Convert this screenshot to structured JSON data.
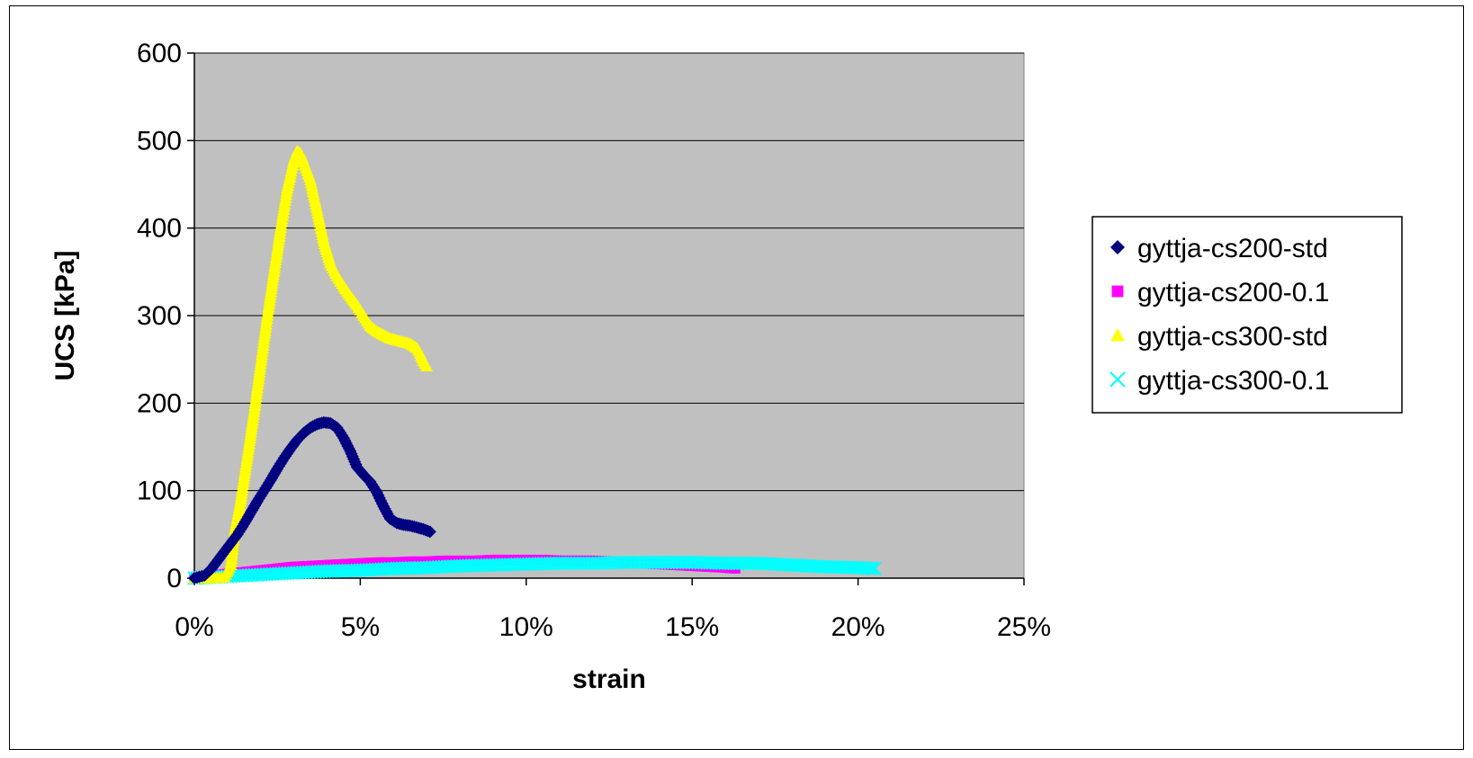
{
  "colors": {
    "plot_bg": "#c0c0c0",
    "gridline": "#000000",
    "axis": "#000000"
  },
  "chart_data": {
    "type": "scatter",
    "title": "",
    "xlabel": "strain",
    "ylabel": "UCS [kPa]",
    "xlim": [
      0,
      0.25
    ],
    "ylim": [
      0,
      600
    ],
    "x_tick_values": [
      0,
      0.05,
      0.1,
      0.15,
      0.2,
      0.25
    ],
    "x_tick_labels": [
      "0%",
      "5%",
      "10%",
      "15%",
      "20%",
      "25%"
    ],
    "y_tick_values": [
      0,
      100,
      200,
      300,
      400,
      500,
      600
    ],
    "y_tick_labels": [
      "0",
      "100",
      "200",
      "300",
      "400",
      "500",
      "600"
    ],
    "grid": "horizontal major gridlines",
    "legend_position": "right",
    "series": [
      {
        "name": "gyttja-cs200-std",
        "marker": "diamond",
        "color": "#000080",
        "points": [
          [
            0,
            0
          ],
          [
            0.003,
            3
          ],
          [
            0.005,
            10
          ],
          [
            0.007,
            20
          ],
          [
            0.009,
            30
          ],
          [
            0.011,
            40
          ],
          [
            0.013,
            50
          ],
          [
            0.015,
            62
          ],
          [
            0.017,
            75
          ],
          [
            0.019,
            88
          ],
          [
            0.021,
            100
          ],
          [
            0.023,
            112
          ],
          [
            0.025,
            125
          ],
          [
            0.027,
            137
          ],
          [
            0.029,
            148
          ],
          [
            0.031,
            158
          ],
          [
            0.033,
            166
          ],
          [
            0.035,
            172
          ],
          [
            0.037,
            176
          ],
          [
            0.039,
            178
          ],
          [
            0.041,
            177
          ],
          [
            0.043,
            172
          ],
          [
            0.045,
            160
          ],
          [
            0.047,
            145
          ],
          [
            0.049,
            127
          ],
          [
            0.051,
            118
          ],
          [
            0.053,
            110
          ],
          [
            0.055,
            98
          ],
          [
            0.057,
            82
          ],
          [
            0.059,
            68
          ],
          [
            0.061,
            63
          ],
          [
            0.063,
            61
          ],
          [
            0.065,
            60
          ],
          [
            0.067,
            58
          ],
          [
            0.069,
            56
          ],
          [
            0.071,
            53
          ]
        ]
      },
      {
        "name": "gyttja-cs200-0.1",
        "marker": "square",
        "color": "#ff00ff",
        "points": [
          [
            0,
            0
          ],
          [
            0.005,
            3
          ],
          [
            0.01,
            5
          ],
          [
            0.015,
            7
          ],
          [
            0.02,
            9
          ],
          [
            0.025,
            11
          ],
          [
            0.03,
            13
          ],
          [
            0.035,
            14
          ],
          [
            0.04,
            15
          ],
          [
            0.045,
            16
          ],
          [
            0.05,
            17
          ],
          [
            0.055,
            18
          ],
          [
            0.06,
            18
          ],
          [
            0.065,
            19
          ],
          [
            0.07,
            19
          ],
          [
            0.075,
            20
          ],
          [
            0.08,
            20
          ],
          [
            0.085,
            20
          ],
          [
            0.09,
            21
          ],
          [
            0.095,
            21
          ],
          [
            0.1,
            21
          ],
          [
            0.105,
            21
          ],
          [
            0.11,
            20
          ],
          [
            0.115,
            20
          ],
          [
            0.12,
            20
          ],
          [
            0.125,
            19
          ],
          [
            0.13,
            18
          ],
          [
            0.135,
            17
          ],
          [
            0.14,
            16
          ],
          [
            0.145,
            15
          ],
          [
            0.15,
            14
          ],
          [
            0.155,
            13
          ],
          [
            0.16,
            12
          ],
          [
            0.163,
            11
          ]
        ]
      },
      {
        "name": "gyttja-cs300-std",
        "marker": "triangle",
        "color": "#ffff00",
        "points": [
          [
            0,
            0
          ],
          [
            0.003,
            0
          ],
          [
            0.006,
            0
          ],
          [
            0.009,
            1
          ],
          [
            0.011,
            15
          ],
          [
            0.012,
            50
          ],
          [
            0.014,
            90
          ],
          [
            0.016,
            140
          ],
          [
            0.018,
            190
          ],
          [
            0.02,
            245
          ],
          [
            0.022,
            300
          ],
          [
            0.024,
            350
          ],
          [
            0.026,
            400
          ],
          [
            0.028,
            445
          ],
          [
            0.03,
            478
          ],
          [
            0.031,
            488
          ],
          [
            0.032,
            485
          ],
          [
            0.033,
            475
          ],
          [
            0.035,
            455
          ],
          [
            0.037,
            420
          ],
          [
            0.039,
            385
          ],
          [
            0.041,
            360
          ],
          [
            0.043,
            345
          ],
          [
            0.045,
            333
          ],
          [
            0.047,
            322
          ],
          [
            0.049,
            312
          ],
          [
            0.051,
            300
          ],
          [
            0.053,
            288
          ],
          [
            0.055,
            282
          ],
          [
            0.057,
            278
          ],
          [
            0.059,
            274
          ],
          [
            0.061,
            272
          ],
          [
            0.063,
            270
          ],
          [
            0.065,
            268
          ],
          [
            0.067,
            263
          ],
          [
            0.068,
            257
          ],
          [
            0.069,
            248
          ],
          [
            0.07,
            242
          ]
        ]
      },
      {
        "name": "gyttja-cs300-0.1",
        "marker": "x",
        "color": "#00ffff",
        "points": [
          [
            0,
            0
          ],
          [
            0.01,
            2
          ],
          [
            0.02,
            4
          ],
          [
            0.03,
            6
          ],
          [
            0.04,
            8
          ],
          [
            0.05,
            9
          ],
          [
            0.06,
            11
          ],
          [
            0.07,
            12
          ],
          [
            0.08,
            14
          ],
          [
            0.09,
            15
          ],
          [
            0.1,
            16
          ],
          [
            0.11,
            17
          ],
          [
            0.12,
            17
          ],
          [
            0.13,
            18
          ],
          [
            0.14,
            18
          ],
          [
            0.15,
            18
          ],
          [
            0.16,
            17
          ],
          [
            0.17,
            17
          ],
          [
            0.18,
            15
          ],
          [
            0.19,
            13
          ],
          [
            0.2,
            12
          ],
          [
            0.205,
            11
          ]
        ]
      }
    ]
  }
}
